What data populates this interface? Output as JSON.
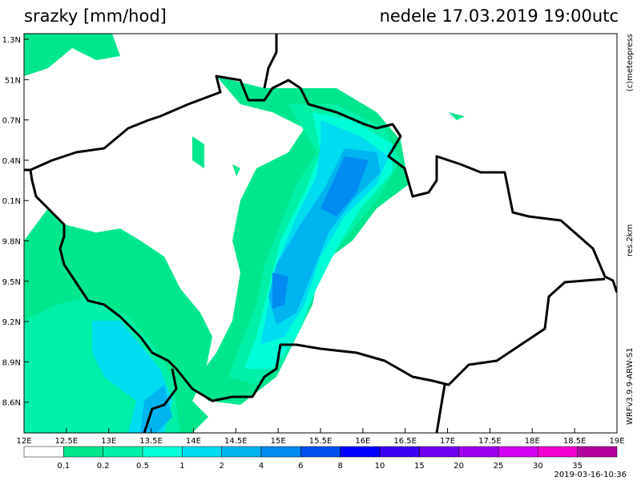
{
  "header": {
    "title": "srazky [mm/hod]",
    "datetime": "nedele 17.03.2019 19:00utc"
  },
  "map": {
    "lat_labels": [
      "1.3N",
      "51N",
      "0.7N",
      "0.4N",
      "0.1N",
      "9.8N",
      "9.5N",
      "9.2N",
      "8.9N",
      "8.6N"
    ],
    "lon_labels": [
      "12E",
      "12.5E",
      "13E",
      "13.5E",
      "14E",
      "14.5E",
      "15E",
      "15.5E",
      "16E",
      "16.5E",
      "17E",
      "17.5E",
      "18E",
      "18.5E",
      "19E"
    ]
  },
  "side_labels": [
    "(c)meteopress",
    "res.2km",
    "WRFv3.9.9-ARW-S1"
  ],
  "legend": {
    "levels": [
      0.1,
      0.2,
      0.5,
      1,
      2,
      4,
      6,
      8,
      10,
      15,
      20,
      25,
      30,
      35
    ],
    "colors": [
      "#ffffff",
      "#00e68c",
      "#00f0a8",
      "#00ffd8",
      "#00dcf0",
      "#00b4f0",
      "#008cf0",
      "#0050f0",
      "#0000ff",
      "#3c00f0",
      "#7000f0",
      "#a000f0",
      "#d200f0",
      "#f000d2",
      "#b4009c"
    ]
  },
  "footer": {
    "timestamp": "2019-03-16-10:36"
  }
}
